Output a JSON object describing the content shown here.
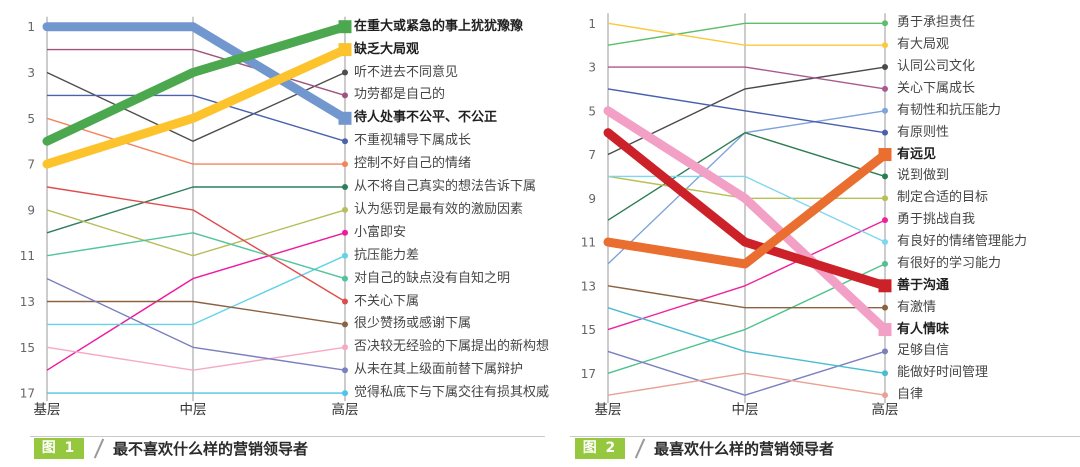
{
  "captions": {
    "badge_color": "#95c83e",
    "rule_color": "#c9c9c9",
    "left": {
      "badge": "图 1",
      "title": "最不喜欢什么样的营销领导者"
    },
    "right": {
      "badge": "图 2",
      "title": "最喜欢什么样的营销领导者"
    }
  },
  "chart_data": [
    {
      "type": "line",
      "subtype": "bump-rank-chart",
      "title": "最不喜欢什么样的营销领导者",
      "x_categories": [
        "基层",
        "中层",
        "高层"
      ],
      "y_axis": {
        "label": "rank",
        "ticks": [
          1,
          3,
          5,
          7,
          9,
          11,
          13,
          15,
          17
        ],
        "min": 1,
        "max": 17,
        "inverted": true,
        "grid": false
      },
      "legend_position": "right-labels",
      "series": [
        {
          "name": "在重大或紧急的事上犹犹豫豫",
          "ranks": [
            6,
            3,
            1
          ],
          "color": "#4ba84f",
          "highlight": true,
          "layer": 2
        },
        {
          "name": "缺乏大局观",
          "ranks": [
            7,
            5,
            2
          ],
          "color": "#fcc32c",
          "highlight": true,
          "layer": 3
        },
        {
          "name": "听不进去不同意见",
          "ranks": [
            3,
            6,
            3
          ],
          "color": "#4d4d4f",
          "highlight": false
        },
        {
          "name": "功劳都是自己的",
          "ranks": [
            2,
            2,
            4
          ],
          "color": "#a0527e",
          "highlight": false
        },
        {
          "name": "待人处事不公平、不公正",
          "ranks": [
            1,
            1,
            5
          ],
          "color": "#7297cf",
          "highlight": true,
          "layer": 1
        },
        {
          "name": "不重视辅导下属成长",
          "ranks": [
            4,
            4,
            6
          ],
          "color": "#4b62ad",
          "highlight": false
        },
        {
          "name": "控制不好自己的情绪",
          "ranks": [
            5,
            7,
            7
          ],
          "color": "#f4845e",
          "highlight": false
        },
        {
          "name": "从不将自己真实的想法告诉下属",
          "ranks": [
            10,
            8,
            8
          ],
          "color": "#2e7d5e",
          "highlight": false
        },
        {
          "name": "认为惩罚是最有效的激励因素",
          "ranks": [
            9,
            11,
            9
          ],
          "color": "#b6bd5a",
          "highlight": false
        },
        {
          "name": "小富即安",
          "ranks": [
            16,
            12,
            10
          ],
          "color": "#ef18a0",
          "highlight": false
        },
        {
          "name": "抗压能力差",
          "ranks": [
            14,
            14,
            11
          ],
          "color": "#63d3e8",
          "highlight": false
        },
        {
          "name": "对自己的缺点没有自知之明",
          "ranks": [
            11,
            10,
            12
          ],
          "color": "#52c49a",
          "highlight": false
        },
        {
          "name": "不关心下属",
          "ranks": [
            8,
            9,
            13
          ],
          "color": "#e04b4b",
          "highlight": false
        },
        {
          "name": "很少赞扬或感谢下属",
          "ranks": [
            13,
            13,
            14
          ],
          "color": "#8a6240",
          "highlight": false
        },
        {
          "name": "否决较无经验的下属提出的新构想",
          "ranks": [
            15,
            16,
            15
          ],
          "color": "#f6a9c5",
          "highlight": false
        },
        {
          "name": "从未在其上级面前替下属辩护",
          "ranks": [
            12,
            15,
            16
          ],
          "color": "#7a7fc0",
          "highlight": false
        },
        {
          "name": "觉得私底下与下属交往有损其权威",
          "ranks": [
            17,
            17,
            17
          ],
          "color": "#4fc4e8",
          "highlight": false
        }
      ]
    },
    {
      "type": "line",
      "subtype": "bump-rank-chart",
      "title": "最喜欢什么样的营销领导者",
      "x_categories": [
        "基层",
        "中层",
        "高层"
      ],
      "y_axis": {
        "label": "rank",
        "ticks": [
          1,
          3,
          5,
          7,
          9,
          11,
          13,
          15,
          17
        ],
        "min": 1,
        "max": 18,
        "inverted": true,
        "grid": false
      },
      "legend_position": "right-labels",
      "series": [
        {
          "name": "勇于承担责任",
          "ranks": [
            2,
            1,
            1
          ],
          "color": "#5dbd6a",
          "highlight": false
        },
        {
          "name": "有大局观",
          "ranks": [
            1,
            2,
            2
          ],
          "color": "#fbc93d",
          "highlight": false
        },
        {
          "name": "认同公司文化",
          "ranks": [
            7,
            4,
            3
          ],
          "color": "#4a4a4c",
          "highlight": false
        },
        {
          "name": "关心下属成长",
          "ranks": [
            3,
            3,
            4
          ],
          "color": "#a85a8f",
          "highlight": false
        },
        {
          "name": "有韧性和抗压能力",
          "ranks": [
            12,
            6,
            5
          ],
          "color": "#7fa3dc",
          "highlight": false
        },
        {
          "name": "有原则性",
          "ranks": [
            4,
            5,
            6
          ],
          "color": "#4a5fae",
          "highlight": false
        },
        {
          "name": "有远见",
          "ranks": [
            11,
            12,
            7
          ],
          "color": "#e96e2f",
          "highlight": true,
          "layer": 3
        },
        {
          "name": "说到做到",
          "ranks": [
            10,
            6,
            8
          ],
          "color": "#2c7d52",
          "highlight": false
        },
        {
          "name": "制定合适的目标",
          "ranks": [
            8,
            9,
            9
          ],
          "color": "#b8bf55",
          "highlight": false
        },
        {
          "name": "勇于挑战自我",
          "ranks": [
            15,
            13,
            10
          ],
          "color": "#f0219c",
          "highlight": false
        },
        {
          "name": "有良好的情绪管理能力",
          "ranks": [
            8,
            8,
            11
          ],
          "color": "#7fd6ef",
          "highlight": false
        },
        {
          "name": "有很好的学习能力",
          "ranks": [
            17,
            15,
            12
          ],
          "color": "#4ec28e",
          "highlight": false
        },
        {
          "name": "善于沟通",
          "ranks": [
            6,
            11,
            13
          ],
          "color": "#cc2128",
          "highlight": true,
          "layer": 2
        },
        {
          "name": "有激情",
          "ranks": [
            13,
            14,
            14
          ],
          "color": "#8a6240",
          "highlight": false
        },
        {
          "name": "有人情味",
          "ranks": [
            5,
            9,
            15
          ],
          "color": "#f2a0c5",
          "highlight": true,
          "layer": 1
        },
        {
          "name": "足够自信",
          "ranks": [
            16,
            18,
            16
          ],
          "color": "#7a7fc0",
          "highlight": false
        },
        {
          "name": "能做好时间管理",
          "ranks": [
            14,
            16,
            17
          ],
          "color": "#49bcd1",
          "highlight": false
        },
        {
          "name": "自律",
          "ranks": [
            18,
            17,
            18
          ],
          "color": "#e8a195",
          "highlight": false
        }
      ]
    }
  ]
}
